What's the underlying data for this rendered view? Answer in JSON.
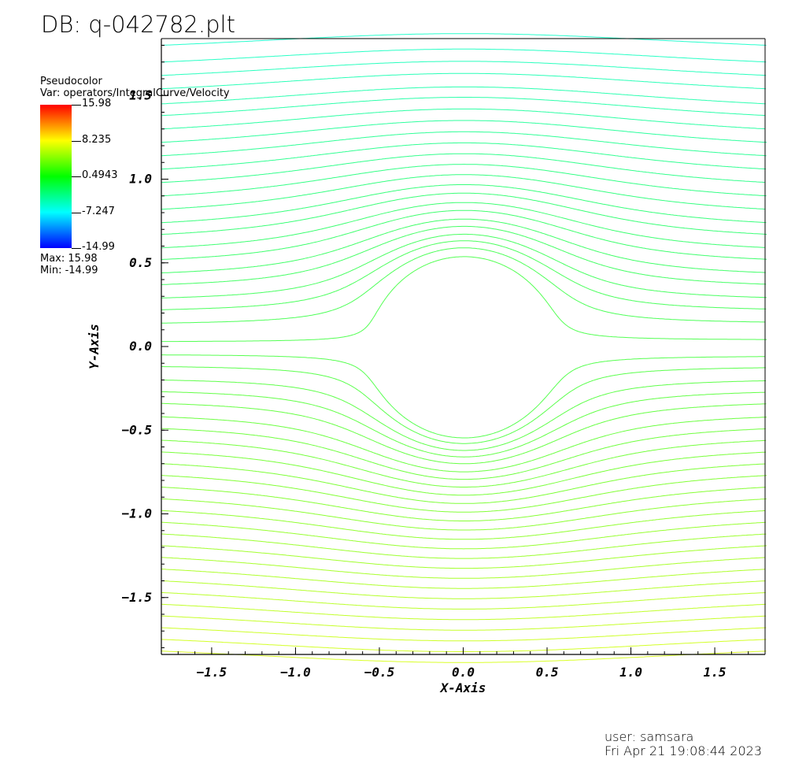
{
  "header": {
    "db_title": "DB: q-042782.plt"
  },
  "legend": {
    "title": "Pseudocolor",
    "var": "Var: operators/IntegralCurve/Velocity",
    "ticks": [
      "15.98",
      "8.235",
      "0.4943",
      "-7.247",
      "-14.99"
    ],
    "max": "Max:  15.98",
    "min": "Min: -14.99",
    "colors": [
      "#0000ff",
      "#00ffff",
      "#00ff00",
      "#ffff00",
      "#ff0000"
    ]
  },
  "footer": {
    "user": "user: samsara",
    "date": "Fri Apr 21 19:08:44 2023"
  },
  "chart_data": {
    "type": "line",
    "title": "",
    "xlabel": "X-Axis",
    "ylabel": "Y-Axis",
    "xlim": [
      -1.8,
      1.8
    ],
    "ylim": [
      -1.84,
      1.84
    ],
    "x_ticks": [
      -1.5,
      -1.0,
      -0.5,
      0.0,
      0.5,
      1.0,
      1.5
    ],
    "x_tick_labels": [
      "-1.5",
      "-1.0",
      "-0.5",
      "0.0",
      "0.5",
      "1.0",
      "1.5"
    ],
    "y_ticks": [
      -1.5,
      -1.0,
      -0.5,
      0.0,
      0.5,
      1.0,
      1.5
    ],
    "y_tick_labels": [
      "-1.5",
      "-1.0",
      "-0.5",
      "0.0",
      "0.5",
      "1.0",
      "1.5"
    ],
    "grid": false,
    "obstacle_radius": 0.52,
    "streamline_start_y": [
      1.8,
      1.7,
      1.62,
      1.54,
      1.45,
      1.38,
      1.3,
      1.22,
      1.14,
      1.06,
      0.98,
      0.9,
      0.82,
      0.74,
      0.67,
      0.59,
      0.52,
      0.44,
      0.37,
      0.29,
      0.22,
      0.14,
      0.03,
      -0.05,
      -0.12,
      -0.2,
      -0.27,
      -0.34,
      -0.42,
      -0.49,
      -0.56,
      -0.63,
      -0.7,
      -0.77,
      -0.84,
      -0.91,
      -0.98,
      -1.05,
      -1.12,
      -1.19,
      -1.26,
      -1.33,
      -1.4,
      -1.47,
      -1.54,
      -1.61,
      -1.68,
      -1.75,
      -1.82
    ],
    "series_color_note": "streamlines colored by velocity magnitude"
  }
}
